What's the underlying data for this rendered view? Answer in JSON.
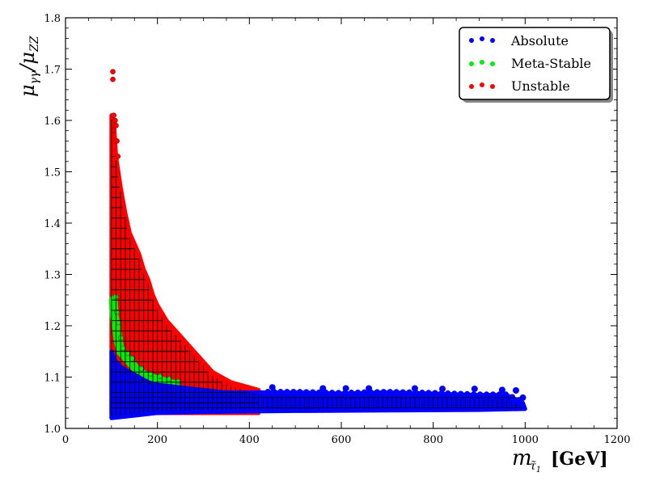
{
  "chart_data": {
    "type": "scatter",
    "title": "",
    "xlabel": "m_{τ̃1} [GeV]",
    "ylabel": "μγγ/μZZ",
    "xlim": [
      0,
      1200
    ],
    "ylim": [
      1.0,
      1.8
    ],
    "xticks": [
      0,
      200,
      400,
      600,
      800,
      1000,
      1200
    ],
    "yticks": [
      1.0,
      1.1,
      1.2,
      1.3,
      1.4,
      1.5,
      1.6,
      1.7,
      1.8
    ],
    "xtick_labels": [
      "0",
      "200",
      "400",
      "600",
      "800",
      "1000",
      "1200"
    ],
    "ytick_labels": [
      "1.0",
      "1.1",
      "1.2",
      "1.3",
      "1.4",
      "1.5",
      "1.6",
      "1.7",
      "1.8"
    ],
    "grid": false,
    "legend_position": "top-right",
    "series": [
      {
        "name": "Unstable",
        "color": "#ff0000",
        "region_upper": [
          [
            100,
            1.61
          ],
          [
            105,
            1.6
          ],
          [
            110,
            1.53
          ],
          [
            120,
            1.47
          ],
          [
            130,
            1.42
          ],
          [
            140,
            1.38
          ],
          [
            150,
            1.36
          ],
          [
            160,
            1.34
          ],
          [
            170,
            1.31
          ],
          [
            180,
            1.29
          ],
          [
            190,
            1.26
          ],
          [
            200,
            1.24
          ],
          [
            220,
            1.21
          ],
          [
            240,
            1.19
          ],
          [
            260,
            1.17
          ],
          [
            280,
            1.15
          ],
          [
            300,
            1.13
          ],
          [
            320,
            1.11
          ],
          [
            340,
            1.1
          ],
          [
            360,
            1.09
          ],
          [
            380,
            1.085
          ],
          [
            400,
            1.08
          ],
          [
            420,
            1.075
          ]
        ],
        "outliers": [
          [
            103,
            1.695
          ],
          [
            103,
            1.68
          ],
          [
            105,
            1.61
          ],
          [
            108,
            1.6
          ],
          [
            110,
            1.59
          ],
          [
            112,
            1.56
          ],
          [
            114,
            1.53
          ],
          [
            105,
            1.58
          ]
        ]
      },
      {
        "name": "Meta-Stable",
        "color": "#00ee00",
        "band": [
          [
            104,
            1.25
          ],
          [
            106,
            1.22
          ],
          [
            110,
            1.2
          ],
          [
            115,
            1.17
          ],
          [
            120,
            1.15
          ],
          [
            130,
            1.14
          ],
          [
            140,
            1.13
          ],
          [
            160,
            1.11
          ],
          [
            180,
            1.1
          ],
          [
            200,
            1.095
          ],
          [
            220,
            1.09
          ],
          [
            240,
            1.085
          ]
        ]
      },
      {
        "name": "Absolute",
        "color": "#0000ff",
        "region_upper": [
          [
            100,
            1.15
          ],
          [
            110,
            1.13
          ],
          [
            120,
            1.12
          ],
          [
            140,
            1.11
          ],
          [
            160,
            1.1
          ],
          [
            180,
            1.09
          ],
          [
            200,
            1.085
          ],
          [
            250,
            1.08
          ],
          [
            300,
            1.075
          ],
          [
            350,
            1.07
          ],
          [
            400,
            1.07
          ],
          [
            500,
            1.07
          ],
          [
            600,
            1.068
          ],
          [
            700,
            1.07
          ],
          [
            800,
            1.068
          ],
          [
            900,
            1.065
          ],
          [
            960,
            1.065
          ],
          [
            995,
            1.05
          ]
        ],
        "region_lower": [
          [
            100,
            1.02
          ],
          [
            150,
            1.025
          ],
          [
            200,
            1.03
          ],
          [
            300,
            1.032
          ],
          [
            500,
            1.034
          ],
          [
            700,
            1.035
          ],
          [
            900,
            1.036
          ],
          [
            1000,
            1.038
          ]
        ],
        "edge_points": [
          [
            450,
            1.08
          ],
          [
            560,
            1.078
          ],
          [
            610,
            1.078
          ],
          [
            660,
            1.078
          ],
          [
            760,
            1.078
          ],
          [
            820,
            1.077
          ],
          [
            890,
            1.077
          ],
          [
            950,
            1.075
          ],
          [
            980,
            1.074
          ],
          [
            995,
            1.06
          ]
        ]
      }
    ]
  },
  "legend": {
    "items": [
      {
        "label": "Absolute",
        "color": "#0000ff",
        "edge": "#000088"
      },
      {
        "label": "Meta-Stable",
        "color": "#00ee00",
        "edge": "#008800"
      },
      {
        "label": "Unstable",
        "color": "#ff0000",
        "edge": "#880000"
      }
    ]
  }
}
